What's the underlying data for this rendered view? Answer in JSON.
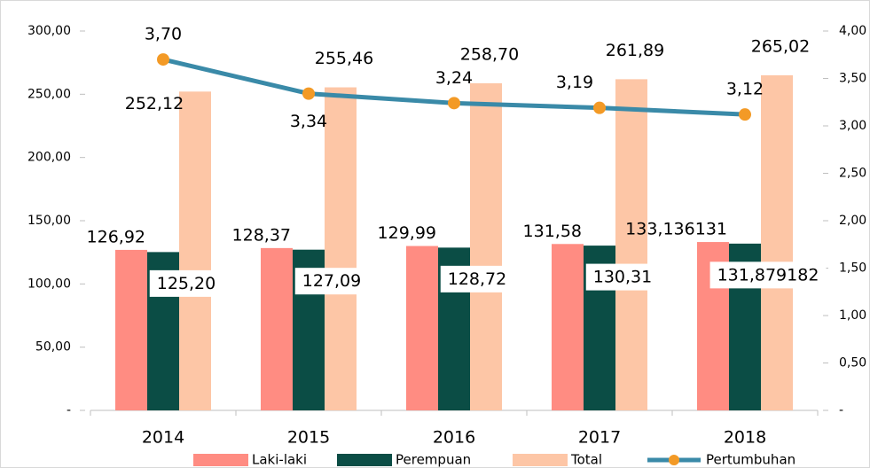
{
  "chart_data": {
    "type": "bar",
    "categories": [
      "2014",
      "2015",
      "2016",
      "2017",
      "2018"
    ],
    "series": [
      {
        "name": "Laki-laki",
        "color": "#ff8c82",
        "values": [
          126.92,
          128.37,
          129.99,
          131.58,
          133.136131
        ],
        "value_labels": [
          "126,92",
          "128,37",
          "129,99",
          "131,58",
          "133,136131"
        ]
      },
      {
        "name": "Perempuan",
        "color": "#0b4d45",
        "values": [
          125.2,
          127.09,
          128.72,
          130.31,
          131.879182
        ],
        "value_labels": [
          "125,20",
          "127,09",
          "128,72",
          "130,31",
          "131,879182"
        ]
      },
      {
        "name": "Total",
        "color": "#fdc6a6",
        "values": [
          252.12,
          255.46,
          258.7,
          261.89,
          265.02
        ],
        "value_labels": [
          "252,12",
          "255,46",
          "258,70",
          "261,89",
          "265,02"
        ]
      },
      {
        "name": "Pertumbuhan",
        "type": "line",
        "axis": "y2",
        "color": "#3a8aa8",
        "marker_color": "#f39a26",
        "values": [
          3.7,
          3.34,
          3.24,
          3.19,
          3.12
        ],
        "value_labels": [
          "3,70",
          "3,34",
          "3,24",
          "3,19",
          "3,12"
        ]
      }
    ],
    "ylim": [
      0,
      300
    ],
    "yticks": [
      {
        "value": 0,
        "label": "-"
      },
      {
        "value": 50,
        "label": "50,00"
      },
      {
        "value": 100,
        "label": "100,00"
      },
      {
        "value": 150,
        "label": "150,00"
      },
      {
        "value": 200,
        "label": "200,00"
      },
      {
        "value": 250,
        "label": "250,00"
      },
      {
        "value": 300,
        "label": "300,00"
      }
    ],
    "y2lim": [
      0,
      4
    ],
    "y2ticks": [
      {
        "value": 0,
        "label": "-"
      },
      {
        "value": 0.5,
        "label": "0,50"
      },
      {
        "value": 1,
        "label": "1,00"
      },
      {
        "value": 1.5,
        "label": "1,50"
      },
      {
        "value": 2,
        "label": "2,00"
      },
      {
        "value": 2.5,
        "label": "2,50"
      },
      {
        "value": 3,
        "label": "3,00"
      },
      {
        "value": 3.5,
        "label": "3,50"
      },
      {
        "value": 4,
        "label": "4,00"
      }
    ],
    "grid": false,
    "legend": "bottom"
  }
}
